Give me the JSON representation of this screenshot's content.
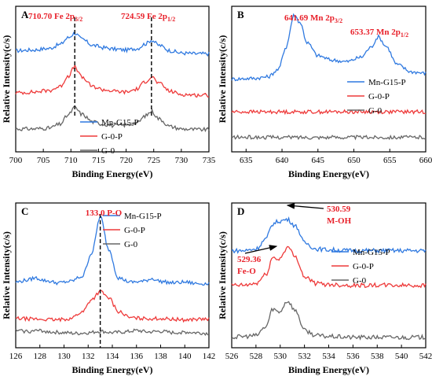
{
  "chart_data": [
    {
      "panel": "A",
      "type": "line",
      "xlabel": "Binding Energy(eV)",
      "ylabel": "Relative Intensity(c/s)",
      "xlim": [
        700,
        735
      ],
      "xticks": [
        700,
        705,
        710,
        715,
        720,
        725,
        730,
        735
      ],
      "legend_position": "bottom-left",
      "series": [
        {
          "name": "Mn-G15-P",
          "color": "#2f79e0",
          "baseline": 1.0,
          "x": [
            700,
            703,
            706,
            708,
            709.5,
            710.7,
            712,
            714,
            716,
            718,
            720,
            722,
            723.5,
            724.6,
            726,
            728,
            730,
            733,
            735
          ],
          "values": [
            1.07,
            1.08,
            1.1,
            1.15,
            1.24,
            1.3,
            1.22,
            1.14,
            1.11,
            1.09,
            1.08,
            1.1,
            1.16,
            1.21,
            1.14,
            1.07,
            1.04,
            1.03,
            1.03
          ]
        },
        {
          "name": "G-0-P",
          "color": "#ee3a3a",
          "baseline": 0.5,
          "x": [
            700,
            703,
            706,
            708,
            709.5,
            710.7,
            712,
            714,
            716,
            718,
            720,
            722,
            723.5,
            724.6,
            726,
            728,
            730,
            733,
            735
          ],
          "values": [
            0.52,
            0.53,
            0.55,
            0.6,
            0.74,
            0.86,
            0.72,
            0.6,
            0.56,
            0.54,
            0.53,
            0.57,
            0.67,
            0.73,
            0.64,
            0.54,
            0.5,
            0.49,
            0.49
          ]
        },
        {
          "name": "G-0",
          "color": "#666666",
          "baseline": 0.0,
          "x": [
            700,
            703,
            706,
            708,
            709.5,
            710.7,
            712,
            714,
            716,
            718,
            720,
            722,
            723.5,
            724.6,
            726,
            728,
            730,
            733,
            735
          ],
          "values": [
            0.05,
            0.05,
            0.06,
            0.11,
            0.23,
            0.33,
            0.24,
            0.14,
            0.11,
            0.09,
            0.1,
            0.13,
            0.22,
            0.28,
            0.18,
            0.08,
            0.05,
            0.04,
            0.04
          ]
        }
      ],
      "vlines": [
        710.7,
        724.59
      ],
      "annotations": [
        {
          "value": "710.70",
          "label": "Fe 2p",
          "sub": "3/2"
        },
        {
          "value": "724.59",
          "label": "Fe 2p",
          "sub": "1/2"
        }
      ]
    },
    {
      "panel": "B",
      "type": "line",
      "xlabel": "Binding Energy(eV)",
      "ylabel": "Relative Intensity(c/s)",
      "xlim": [
        633,
        660
      ],
      "xticks": [
        635,
        640,
        645,
        650,
        655,
        660
      ],
      "legend_position": "middle-right",
      "series": [
        {
          "name": "Mn-G15-P",
          "color": "#2f79e0",
          "baseline": 1.0,
          "x": [
            633,
            636,
            638,
            639.5,
            640.5,
            641.7,
            642.5,
            643.5,
            645,
            647,
            649,
            651,
            652.3,
            653.4,
            654.5,
            656,
            658,
            660
          ],
          "values": [
            1.0,
            1.01,
            1.03,
            1.13,
            1.43,
            1.88,
            1.78,
            1.5,
            1.32,
            1.26,
            1.24,
            1.3,
            1.43,
            1.58,
            1.45,
            1.2,
            1.1,
            1.08
          ]
        },
        {
          "name": "G-0-P",
          "color": "#ee3a3a",
          "baseline": 0.55,
          "x": [
            633,
            660
          ],
          "values": [
            0.55,
            0.55
          ]
        },
        {
          "name": "G-0",
          "color": "#666666",
          "baseline": 0.2,
          "x": [
            633,
            660
          ],
          "values": [
            0.2,
            0.2
          ]
        }
      ],
      "annotations": [
        {
          "value": "641.69",
          "label": "Mn 2p",
          "sub": "3/2"
        },
        {
          "value": "653.37",
          "label": "Mn 2p",
          "sub": "1/2"
        }
      ]
    },
    {
      "panel": "C",
      "type": "line",
      "xlabel": "Binding Energy(eV)",
      "ylabel": "Relative Intensity(c/s)",
      "xlim": [
        126,
        142
      ],
      "xticks": [
        126,
        128,
        130,
        132,
        134,
        136,
        138,
        140,
        142
      ],
      "legend_position": "top-right",
      "series": [
        {
          "name": "Mn-G15-P",
          "color": "#2f79e0",
          "baseline": 1.0,
          "x": [
            126,
            127,
            127.6,
            128.5,
            129.5,
            130.5,
            131.5,
            132.3,
            133.0,
            133.7,
            134.5,
            135.5,
            136.5,
            137.3,
            138,
            139,
            140,
            141,
            142
          ],
          "values": [
            1.04,
            1.07,
            1.1,
            1.06,
            1.03,
            1.05,
            1.12,
            1.45,
            1.96,
            1.5,
            1.1,
            1.04,
            1.05,
            1.09,
            1.05,
            1.03,
            1.04,
            1.02,
            1.02
          ]
        },
        {
          "name": "G-0-P",
          "color": "#ee3a3a",
          "baseline": 0.5,
          "x": [
            126,
            128,
            129.5,
            130.5,
            131.5,
            132.3,
            133.0,
            133.7,
            134.5,
            135.5,
            136.5,
            138,
            139,
            140,
            141,
            142
          ],
          "values": [
            0.53,
            0.52,
            0.51,
            0.53,
            0.62,
            0.8,
            0.91,
            0.82,
            0.63,
            0.54,
            0.53,
            0.53,
            0.52,
            0.51,
            0.52,
            0.52
          ]
        },
        {
          "name": "G-0",
          "color": "#666666",
          "baseline": 0.3,
          "x": [
            126,
            127,
            128,
            129,
            130,
            131,
            132,
            133,
            134,
            135,
            136,
            137,
            138,
            139,
            140,
            141,
            142
          ],
          "values": [
            0.36,
            0.35,
            0.36,
            0.34,
            0.33,
            0.32,
            0.33,
            0.35,
            0.33,
            0.34,
            0.36,
            0.34,
            0.35,
            0.33,
            0.34,
            0.33,
            0.32
          ]
        }
      ],
      "vlines": [
        133.0
      ],
      "annotations": [
        {
          "value": "133.0",
          "label": "P-O",
          "sub": ""
        }
      ]
    },
    {
      "panel": "D",
      "type": "line",
      "xlabel": "Binding Energy(eV)",
      "ylabel": "Relative Intensity(c/s)",
      "xlim": [
        526,
        542
      ],
      "xticks": [
        526,
        528,
        530,
        532,
        534,
        536,
        538,
        540,
        542
      ],
      "legend_position": "middle-right",
      "series": [
        {
          "name": "Mn-G15-P",
          "color": "#2f79e0",
          "baseline": 1.0,
          "x": [
            526,
            527,
            528,
            528.8,
            529.4,
            529.9,
            530.6,
            531.3,
            532,
            533,
            534,
            536,
            538,
            540,
            542
          ],
          "values": [
            1.0,
            1.0,
            1.02,
            1.13,
            1.31,
            1.34,
            1.36,
            1.28,
            1.09,
            1.02,
            1.01,
            1.0,
            1.0,
            1.0,
            1.0
          ]
        },
        {
          "name": "G-0-P",
          "color": "#ee3a3a",
          "baseline": 0.6,
          "x": [
            526,
            527,
            528,
            528.8,
            529.4,
            529.9,
            530.6,
            531.3,
            532,
            533,
            534,
            536,
            538,
            540,
            542
          ],
          "values": [
            0.6,
            0.6,
            0.62,
            0.72,
            0.92,
            0.9,
            1.04,
            0.92,
            0.7,
            0.62,
            0.61,
            0.6,
            0.6,
            0.6,
            0.6
          ]
        },
        {
          "name": "G-0",
          "color": "#666666",
          "baseline": 0.0,
          "x": [
            526,
            527,
            528,
            528.8,
            529.4,
            529.9,
            530.6,
            531.3,
            532,
            533,
            534,
            536,
            538,
            540,
            542
          ],
          "values": [
            0.0,
            0.01,
            0.02,
            0.12,
            0.33,
            0.29,
            0.42,
            0.3,
            0.08,
            0.02,
            0.01,
            0.0,
            0.0,
            0.0,
            0.0
          ]
        }
      ],
      "annotations": [
        {
          "value": "530.59",
          "label": "M-OH",
          "sub": ""
        },
        {
          "value": "529.36",
          "label": "Fe-O",
          "sub": ""
        }
      ]
    }
  ]
}
